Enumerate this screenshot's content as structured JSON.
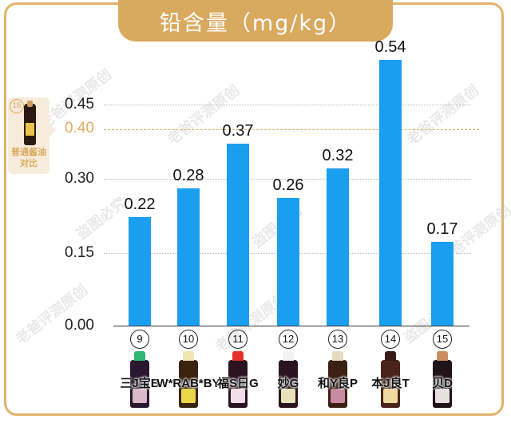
{
  "title": "铅含量（mg/kg）",
  "reference": {
    "number": "16",
    "label_line1": "普通酱油",
    "label_line2": "对比",
    "threshold_value": "0.40"
  },
  "y_ticks": [
    "0.45",
    "0.40",
    "0.30",
    "0.15",
    "0.00"
  ],
  "products": [
    {
      "num": "9",
      "name": "三J宝B",
      "value": "0.22",
      "cap": "#2eb872",
      "body": "#2a1830",
      "label": "#d8b8c8"
    },
    {
      "num": "10",
      "name": "W*RAB*BY",
      "value": "0.28",
      "cap": "#f1e6b0",
      "body": "#3a2410",
      "label": "#e8d84a"
    },
    {
      "num": "11",
      "name": "福S日G",
      "value": "0.37",
      "cap": "#e8302a",
      "body": "#2b1420",
      "label": "#f2dde6"
    },
    {
      "num": "12",
      "name": "妙G",
      "value": "0.26",
      "cap": "#f2f2f2",
      "body": "#2a1420",
      "label": "#e8e2b8"
    },
    {
      "num": "13",
      "name": "和Y良P",
      "value": "0.32",
      "cap": "#e6dcc0",
      "body": "#3a2015",
      "label": "#c88aa0"
    },
    {
      "num": "14",
      "name": "本J良T",
      "value": "0.54",
      "cap": "#3a1a15",
      "body": "#4a2418",
      "label": "#f0d8a0"
    },
    {
      "num": "15",
      "name": "贝D",
      "value": "0.17",
      "cap": "#c89060",
      "body": "#201418",
      "label": "#e8e0e0"
    }
  ],
  "watermark": [
    "老爸评测原创",
    "盗图必究"
  ],
  "colors": {
    "bar": "#1a9ef0",
    "accent": "#d9a95d",
    "threshold": "#e0ad5c"
  },
  "chart_data": {
    "type": "bar",
    "title": "铅含量（mg/kg）",
    "categories": [
      "⑨ 三J宝B",
      "⑩ W*RAB*BY",
      "⑪ 福S日G",
      "⑫ 妙G",
      "⑬ 和Y良P",
      "⑭ 本J良T",
      "⑮ 贝D"
    ],
    "values": [
      0.22,
      0.28,
      0.37,
      0.26,
      0.32,
      0.54,
      0.17
    ],
    "xlabel": "",
    "ylabel": "铅含量（mg/kg）",
    "ylim": [
      0,
      0.54
    ],
    "yticks": [
      0.0,
      0.15,
      0.3,
      0.45
    ],
    "reference_line": {
      "value": 0.4,
      "label": "⑯ 普通酱油对比",
      "style": "dashed",
      "color": "#e0ad5c"
    },
    "grid": true,
    "legend": null
  }
}
